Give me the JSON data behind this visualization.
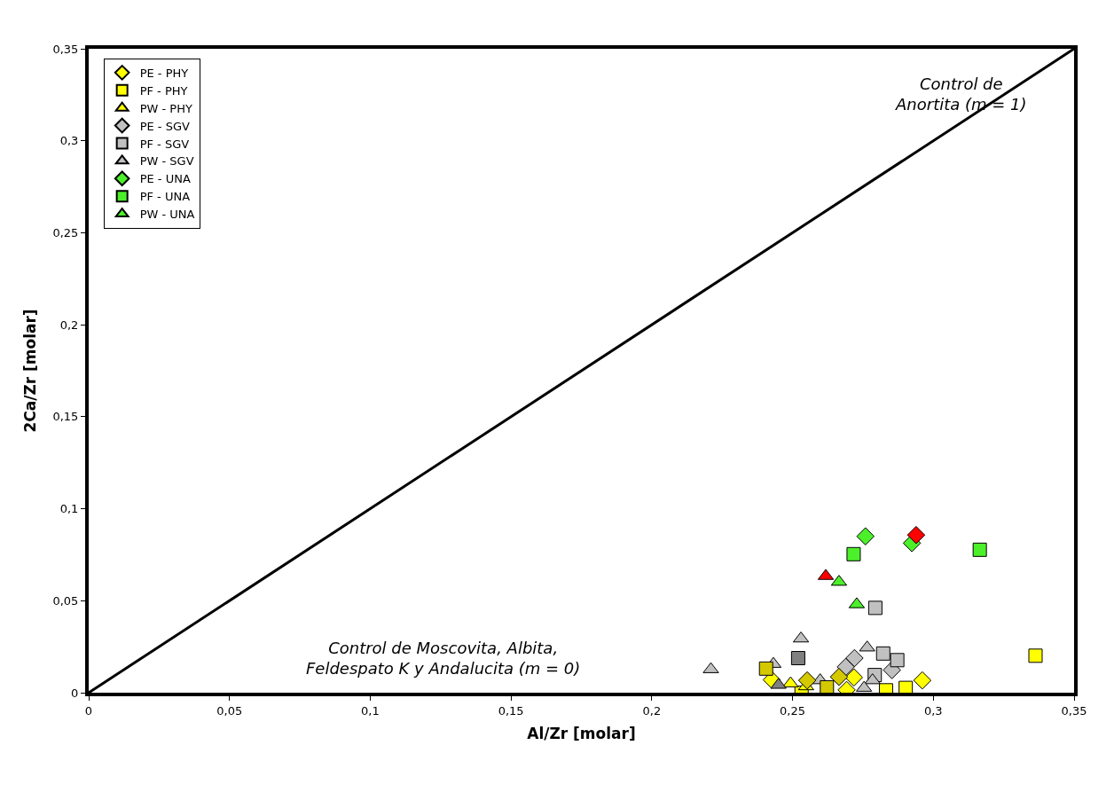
{
  "chart_data": {
    "type": "scatter",
    "xlabel": "Al/Zr [molar]",
    "ylabel": "2Ca/Zr [molar]",
    "xlim": [
      0,
      0.35
    ],
    "ylim": [
      0,
      0.35
    ],
    "xticks": [
      0,
      {
        "value": 0.05,
        "label": "0,05"
      },
      {
        "value": 0.1,
        "label": "0,1"
      },
      {
        "value": 0.15,
        "label": "0,15"
      },
      {
        "value": 0.2,
        "label": "0,2"
      },
      {
        "value": 0.25,
        "label": "0,25"
      },
      {
        "value": 0.3,
        "label": "0,3"
      },
      {
        "value": 0.35,
        "label": "0,35"
      }
    ],
    "yticks": [
      0,
      {
        "value": 0.05,
        "label": "0,05"
      },
      {
        "value": 0.1,
        "label": "0,1"
      },
      {
        "value": 0.15,
        "label": "0,15"
      },
      {
        "value": 0.2,
        "label": "0,2"
      },
      {
        "value": 0.25,
        "label": "0,25"
      },
      {
        "value": 0.3,
        "label": "0,3"
      },
      {
        "value": 0.35,
        "label": "0,35"
      }
    ],
    "legend": "top left",
    "series": [
      {
        "type": "line",
        "color": "#000000",
        "x": [
          0,
          0.35
        ],
        "values": [
          0,
          0.35
        ],
        "marker": "none"
      },
      {
        "name": "PE - PHY",
        "color": "#ffff00",
        "marker": "diamond",
        "x": [
          0.2426,
          0.2718,
          0.2692,
          0.2961
        ],
        "values": [
          0.007,
          0.0083,
          0.0015,
          0.0067
        ]
      },
      {
        "name": "PF - PHY",
        "color": "#ffff00",
        "marker": "square",
        "x": [
          0.3363,
          0.2902,
          0.2832,
          0.2532
        ],
        "values": [
          0.0201,
          0.0026,
          0.0013,
          0.0
        ]
      },
      {
        "name": "PW - PHY",
        "color": "#ffff00",
        "marker": "triangle",
        "x": [
          0.2493,
          0.2548
        ],
        "values": [
          0.005,
          0.0034
        ]
      },
      {
        "name": "PE - SGV",
        "color": "#c0c0c0",
        "marker": "diamond",
        "x": [
          0.272,
          0.2689,
          0.2853
        ],
        "values": [
          0.0188,
          0.014,
          0.0123
        ]
      },
      {
        "name": "PF - SGV",
        "color": "#c0c0c0",
        "marker": "square",
        "x": [
          0.2794,
          0.2822,
          0.2872,
          0.2792
        ],
        "values": [
          0.0461,
          0.0213,
          0.0177,
          0.0096
        ]
      },
      {
        "name": "PW - SGV",
        "color": "#c0c0c0",
        "marker": "triangle",
        "x": [
          0.221,
          0.253,
          0.2432,
          0.2765,
          0.2784,
          0.2754,
          0.2598
        ],
        "values": [
          0.0127,
          0.0294,
          0.0156,
          0.0245,
          0.0067,
          0.0026,
          0.0067
        ]
      },
      {
        "name": "PE - UNA",
        "color": "#4cf02a",
        "marker": "diamond",
        "x": [
          0.2759,
          0.2924
        ],
        "values": [
          0.085,
          0.0813
        ]
      },
      {
        "name": "PF - UNA",
        "color": "#4cf02a",
        "marker": "square",
        "x": [
          0.2717,
          0.3165
        ],
        "values": [
          0.0753,
          0.0777
        ]
      },
      {
        "name": "PW - UNA",
        "color": "#4cf02a",
        "marker": "triangle",
        "x": [
          0.2665,
          0.2728
        ],
        "values": [
          0.0602,
          0.048
        ]
      },
      {
        "color": "#ff0000",
        "marker": "diamond",
        "x": [
          0.2939
        ],
        "values": [
          0.0857
        ]
      },
      {
        "color": "#ff0000",
        "marker": "triangle",
        "x": [
          0.2618
        ],
        "values": [
          0.0634
        ]
      },
      {
        "color": "#d4c800",
        "marker": "diamond",
        "x": [
          0.2552,
          0.2665
        ],
        "values": [
          0.0067,
          0.0086
        ]
      },
      {
        "color": "#d4c800",
        "marker": "square",
        "x": [
          0.2406,
          0.2622
        ],
        "values": [
          0.0131,
          0.0029
        ]
      },
      {
        "color": "#808080",
        "marker": "square",
        "x": [
          0.252
        ],
        "values": [
          0.0188
        ]
      },
      {
        "color": "#808080",
        "marker": "triangle",
        "x": [
          0.245
        ],
        "values": [
          0.0042
        ]
      }
    ],
    "annotations": [
      "Control de\nAnortita (m = 1)",
      "Control de Moscovita, Albita,\nFeldespato K y Andalucita (m = 0)"
    ]
  }
}
